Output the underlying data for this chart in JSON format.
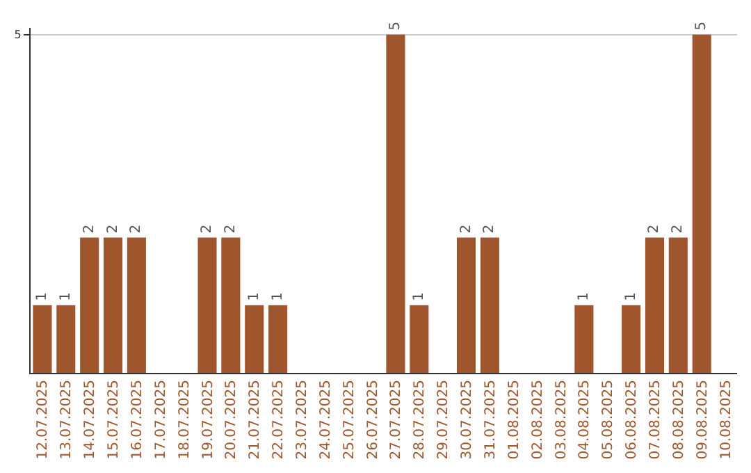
{
  "chart_data": {
    "type": "bar",
    "categories": [
      "12.07.2025",
      "13.07.2025",
      "14.07.2025",
      "15.07.2025",
      "16.07.2025",
      "17.07.2025",
      "18.07.2025",
      "19.07.2025",
      "20.07.2025",
      "21.07.2025",
      "22.07.2025",
      "23.07.2025",
      "24.07.2025",
      "25.07.2025",
      "26.07.2025",
      "27.07.2025",
      "28.07.2025",
      "29.07.2025",
      "30.07.2025",
      "31.07.2025",
      "01.08.2025",
      "02.08.2025",
      "03.08.2025",
      "04.08.2025",
      "05.08.2025",
      "06.08.2025",
      "07.08.2025",
      "08.08.2025",
      "09.08.2025",
      "10.08.2025"
    ],
    "values": [
      1,
      1,
      2,
      2,
      2,
      0,
      0,
      2,
      2,
      1,
      1,
      0,
      0,
      0,
      0,
      5,
      1,
      0,
      2,
      2,
      0,
      0,
      0,
      1,
      0,
      1,
      2,
      2,
      5,
      0
    ],
    "value_labels": [
      "1",
      "1",
      "2",
      "2",
      "2",
      null,
      null,
      "2",
      "2",
      "1",
      "1",
      null,
      null,
      null,
      null,
      "5",
      "1",
      null,
      "2",
      "2",
      null,
      null,
      null,
      "1",
      null,
      "1",
      "2",
      "2",
      "5",
      null
    ],
    "color": "#a0562c",
    "ylim": [
      0,
      5.1
    ],
    "yticks": [
      5
    ],
    "grid": "y",
    "legend": false
  }
}
